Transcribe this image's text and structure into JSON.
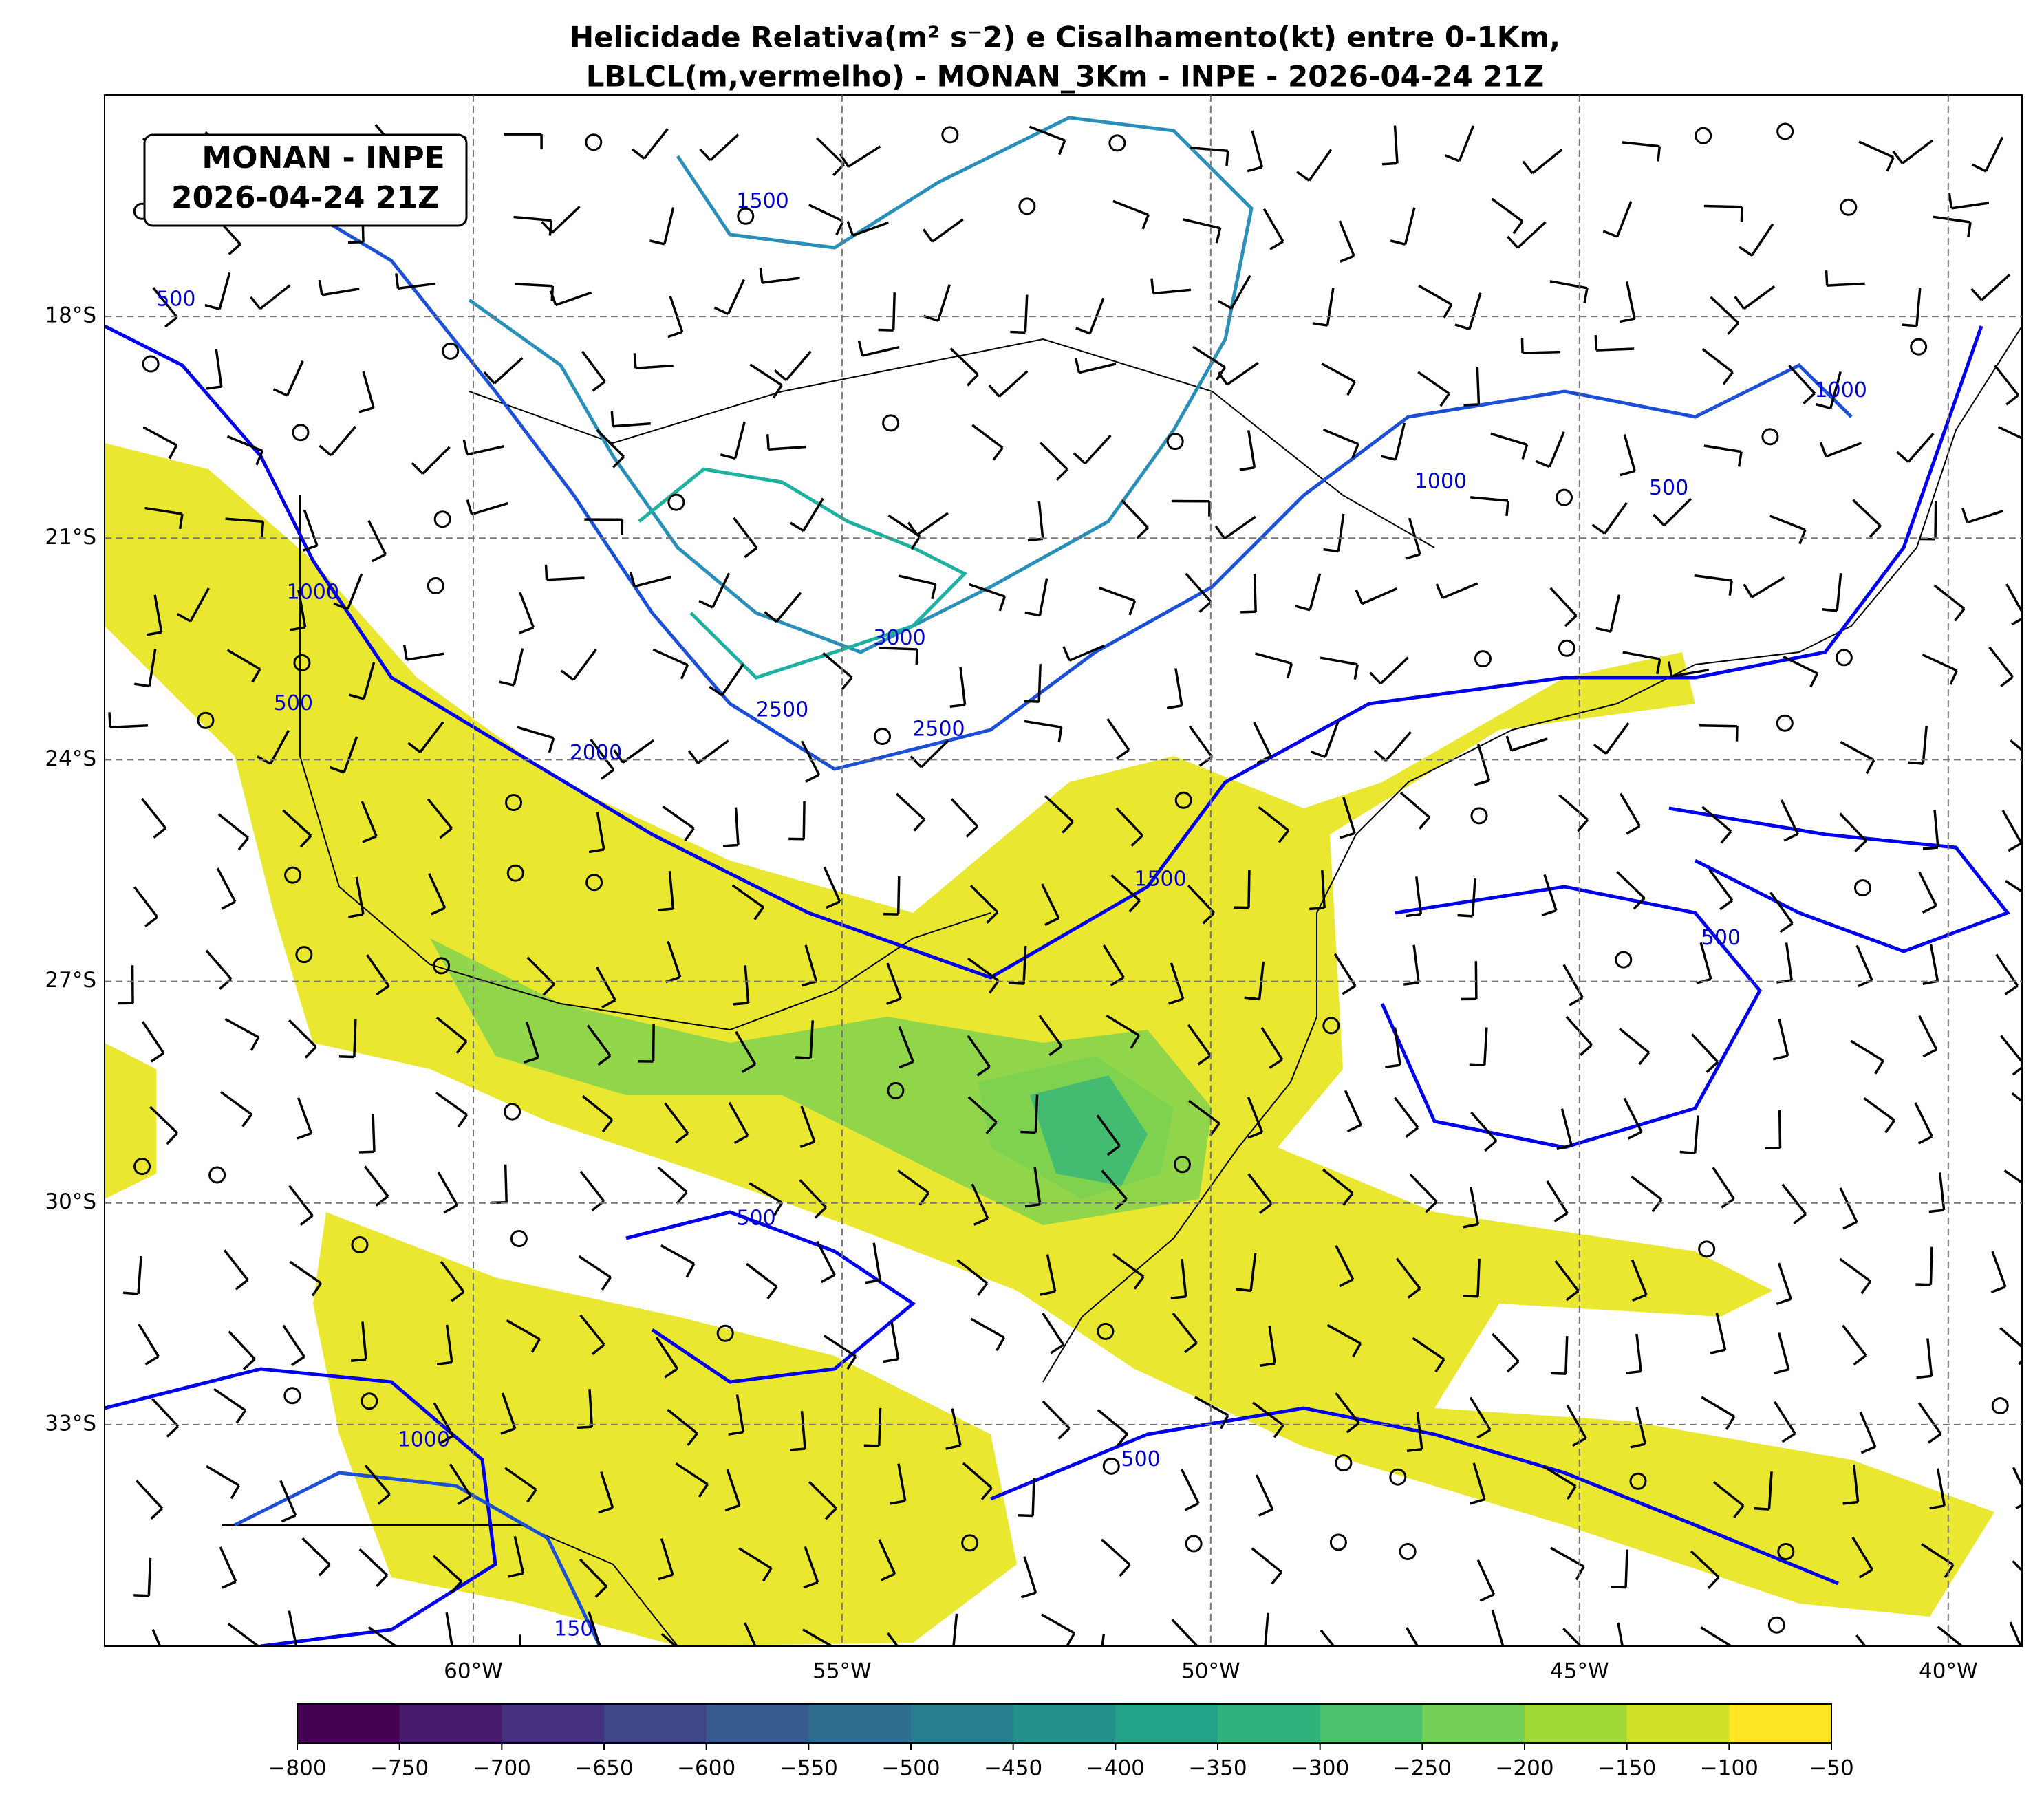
{
  "title": [
    "Helicidade Relativa(m² s⁻2) e Cisalhamento(kt) entre 0-1Km,",
    "LBLCL(m,vermelho) - MONAN_3Km - INPE - 2026-04-24 21Z"
  ],
  "badge": [
    "MONAN - INPE",
    "2026-04-24 21Z"
  ],
  "map": {
    "lon_range": [
      -65,
      -39
    ],
    "lat_range": [
      -36,
      -15
    ],
    "lon_ticks": [
      {
        "value": -60,
        "label": "60°W"
      },
      {
        "value": -55,
        "label": "55°W"
      },
      {
        "value": -50,
        "label": "50°W"
      },
      {
        "value": -45,
        "label": "45°W"
      },
      {
        "value": -40,
        "label": "40°W"
      }
    ],
    "lat_ticks": [
      {
        "value": -18,
        "label": "18°S"
      },
      {
        "value": -21,
        "label": "21°S"
      },
      {
        "value": -24,
        "label": "24°S"
      },
      {
        "value": -27,
        "label": "27°S"
      },
      {
        "value": -30,
        "label": "30°S"
      },
      {
        "value": -33,
        "label": "33°S"
      }
    ]
  },
  "contour_labels": [
    500,
    1500,
    1000,
    500,
    2000,
    2500,
    3000,
    2500,
    1500,
    1000,
    500,
    1000,
    500,
    500,
    1000,
    500,
    150
  ],
  "colorbar": {
    "range": [
      -800,
      -50
    ],
    "ticks": [
      {
        "value": -800,
        "label": "−800"
      },
      {
        "value": -750,
        "label": "−750"
      },
      {
        "value": -700,
        "label": "−700"
      },
      {
        "value": -650,
        "label": "−650"
      },
      {
        "value": -600,
        "label": "−600"
      },
      {
        "value": -550,
        "label": "−550"
      },
      {
        "value": -500,
        "label": "−500"
      },
      {
        "value": -450,
        "label": "−450"
      },
      {
        "value": -400,
        "label": "−400"
      },
      {
        "value": -350,
        "label": "−350"
      },
      {
        "value": -300,
        "label": "−300"
      },
      {
        "value": -250,
        "label": "−250"
      },
      {
        "value": -200,
        "label": "−200"
      },
      {
        "value": -150,
        "label": "−150"
      },
      {
        "value": -100,
        "label": "−100"
      },
      {
        "value": -50,
        "label": "−50"
      }
    ]
  }
}
